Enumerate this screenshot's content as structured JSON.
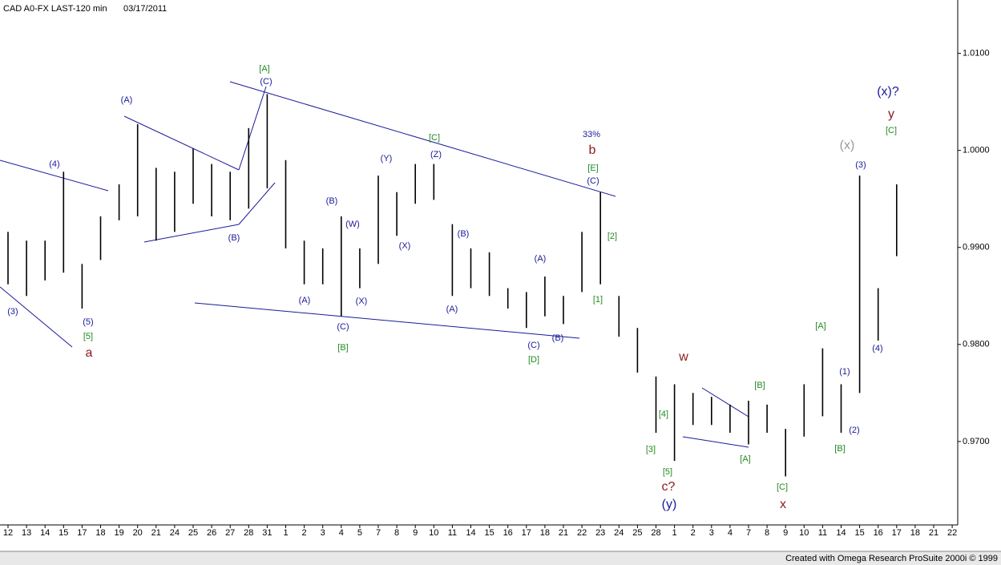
{
  "chart_data": {
    "type": "ohlc",
    "title": "CAD A0-FX LAST-120 min",
    "subtitle": "03/17/2011",
    "footer": "Created with Omega Research ProSuite 2000i © 1999",
    "categories": [
      "12",
      "13",
      "14",
      "15",
      "17",
      "18",
      "19",
      "20",
      "21",
      "24",
      "25",
      "26",
      "27",
      "28",
      "31",
      "1",
      "2",
      "3",
      "4",
      "5",
      "7",
      "8",
      "9",
      "10",
      "11",
      "14",
      "15",
      "16",
      "17",
      "18",
      "21",
      "22",
      "23",
      "24",
      "25",
      "28",
      "1",
      "2",
      "3",
      "4",
      "7",
      "8",
      "9",
      "10",
      "11",
      "14",
      "15",
      "16",
      "17",
      "18",
      "21",
      "22"
    ],
    "series": [
      {
        "name": "High",
        "color": "#000000",
        "values": [
          0.9916,
          0.9907,
          0.9907,
          0.9978,
          0.9883,
          0.9932,
          0.9965,
          1.0027,
          0.9982,
          0.9978,
          1.0002,
          0.9986,
          0.9978,
          1.0023,
          1.0058,
          0.999,
          0.9907,
          0.9899,
          0.9932,
          0.9899,
          0.9974,
          0.9957,
          0.9986,
          0.9986,
          0.9924,
          0.9899,
          0.9895,
          0.9858,
          0.9854,
          0.987,
          0.985,
          0.9916,
          0.9957,
          0.985,
          0.9817,
          0.9767,
          0.9759,
          0.975,
          0.9746,
          0.9738,
          0.9742,
          0.9738,
          0.9713,
          0.9759,
          0.9796,
          0.9759,
          0.9974,
          0.9858,
          0.9965,
          null,
          null,
          null
        ]
      },
      {
        "name": "Low",
        "color": "#000000",
        "values": [
          0.9862,
          0.985,
          0.9866,
          0.9874,
          0.9837,
          0.9887,
          0.9928,
          0.9932,
          0.9907,
          0.9916,
          0.9945,
          0.9932,
          0.9928,
          0.994,
          0.9961,
          0.9899,
          0.9862,
          0.9862,
          0.9829,
          0.9858,
          0.9883,
          0.9912,
          0.9945,
          0.9949,
          0.985,
          0.9858,
          0.985,
          0.9837,
          0.9817,
          0.9829,
          0.9821,
          0.9854,
          0.9862,
          0.9808,
          0.9771,
          0.9709,
          0.968,
          0.9717,
          0.9717,
          0.9709,
          0.9697,
          0.9709,
          0.9664,
          0.9705,
          0.9726,
          0.9709,
          0.975,
          0.9804,
          0.9891,
          null,
          null,
          null
        ]
      }
    ],
    "ylim": [
      0.9614,
      1.0155
    ],
    "yticks": [
      {
        "value": 0.97,
        "label": "0.9700"
      },
      {
        "value": 0.98,
        "label": "0.9800"
      },
      {
        "value": 0.99,
        "label": "0.9900"
      },
      {
        "value": 1.0,
        "label": "1.0000"
      },
      {
        "value": 1.01,
        "label": "1.0100"
      }
    ],
    "grid": false,
    "annotations": [
      {
        "text": "(3)",
        "color": "#1a1a9a"
      },
      {
        "text": "(4)",
        "color": "#1a1a9a"
      },
      {
        "text": "(5)",
        "color": "#1a1a9a"
      },
      {
        "text": "[5]",
        "color": "#228b22"
      },
      {
        "text": "a",
        "color": "#8b1a1a"
      },
      {
        "text": "(A)",
        "color": "#1a1a9a"
      },
      {
        "text": "(B)",
        "color": "#1a1a9a"
      },
      {
        "text": "[A]",
        "color": "#228b22"
      },
      {
        "text": "(C)",
        "color": "#1a1a9a"
      },
      {
        "text": "(A)",
        "color": "#1a1a9a"
      },
      {
        "text": "(B)",
        "color": "#1a1a9a"
      },
      {
        "text": "(W)",
        "color": "#1a1a9a"
      },
      {
        "text": "(X)",
        "color": "#1a1a9a"
      },
      {
        "text": "(C)",
        "color": "#1a1a9a"
      },
      {
        "text": "[B]",
        "color": "#228b22"
      },
      {
        "text": "(Y)",
        "color": "#1a1a9a"
      },
      {
        "text": "(X)",
        "color": "#1a1a9a"
      },
      {
        "text": "(Z)",
        "color": "#1a1a9a"
      },
      {
        "text": "[C]",
        "color": "#228b22"
      },
      {
        "text": "(B)",
        "color": "#1a1a9a"
      },
      {
        "text": "(A)",
        "color": "#1a1a9a"
      },
      {
        "text": "(A)",
        "color": "#1a1a9a"
      },
      {
        "text": "(C)",
        "color": "#1a1a9a"
      },
      {
        "text": "[D]",
        "color": "#228b22"
      },
      {
        "text": "(B)",
        "color": "#1a1a9a"
      },
      {
        "text": "33%",
        "color": "#1a1a9a"
      },
      {
        "text": "b",
        "color": "#8b1a1a"
      },
      {
        "text": "[E]",
        "color": "#228b22"
      },
      {
        "text": "(C)",
        "color": "#1a1a9a"
      },
      {
        "text": "[2]",
        "color": "#228b22"
      },
      {
        "text": "[1]",
        "color": "#228b22"
      },
      {
        "text": "w",
        "color": "#8b1a1a"
      },
      {
        "text": "[4]",
        "color": "#228b22"
      },
      {
        "text": "[3]",
        "color": "#228b22"
      },
      {
        "text": "[5]",
        "color": "#228b22"
      },
      {
        "text": "c?",
        "color": "#8b1a1a"
      },
      {
        "text": "(y)",
        "color": "#1a1a9a"
      },
      {
        "text": "[B]",
        "color": "#228b22"
      },
      {
        "text": "[A]",
        "color": "#228b22"
      },
      {
        "text": "[C]",
        "color": "#228b22"
      },
      {
        "text": "x",
        "color": "#8b1a1a"
      },
      {
        "text": "[A]",
        "color": "#228b22"
      },
      {
        "text": "(1)",
        "color": "#1a1a9a"
      },
      {
        "text": "(2)",
        "color": "#1a1a9a"
      },
      {
        "text": "[B]",
        "color": "#228b22"
      },
      {
        "text": "(x)",
        "color": "#999999"
      },
      {
        "text": "(3)",
        "color": "#1a1a9a"
      },
      {
        "text": "(4)",
        "color": "#1a1a9a"
      },
      {
        "text": "(x)?",
        "color": "#1a1a9a"
      },
      {
        "text": "y",
        "color": "#8b1a1a"
      },
      {
        "text": "[C]",
        "color": "#228b22"
      }
    ]
  }
}
